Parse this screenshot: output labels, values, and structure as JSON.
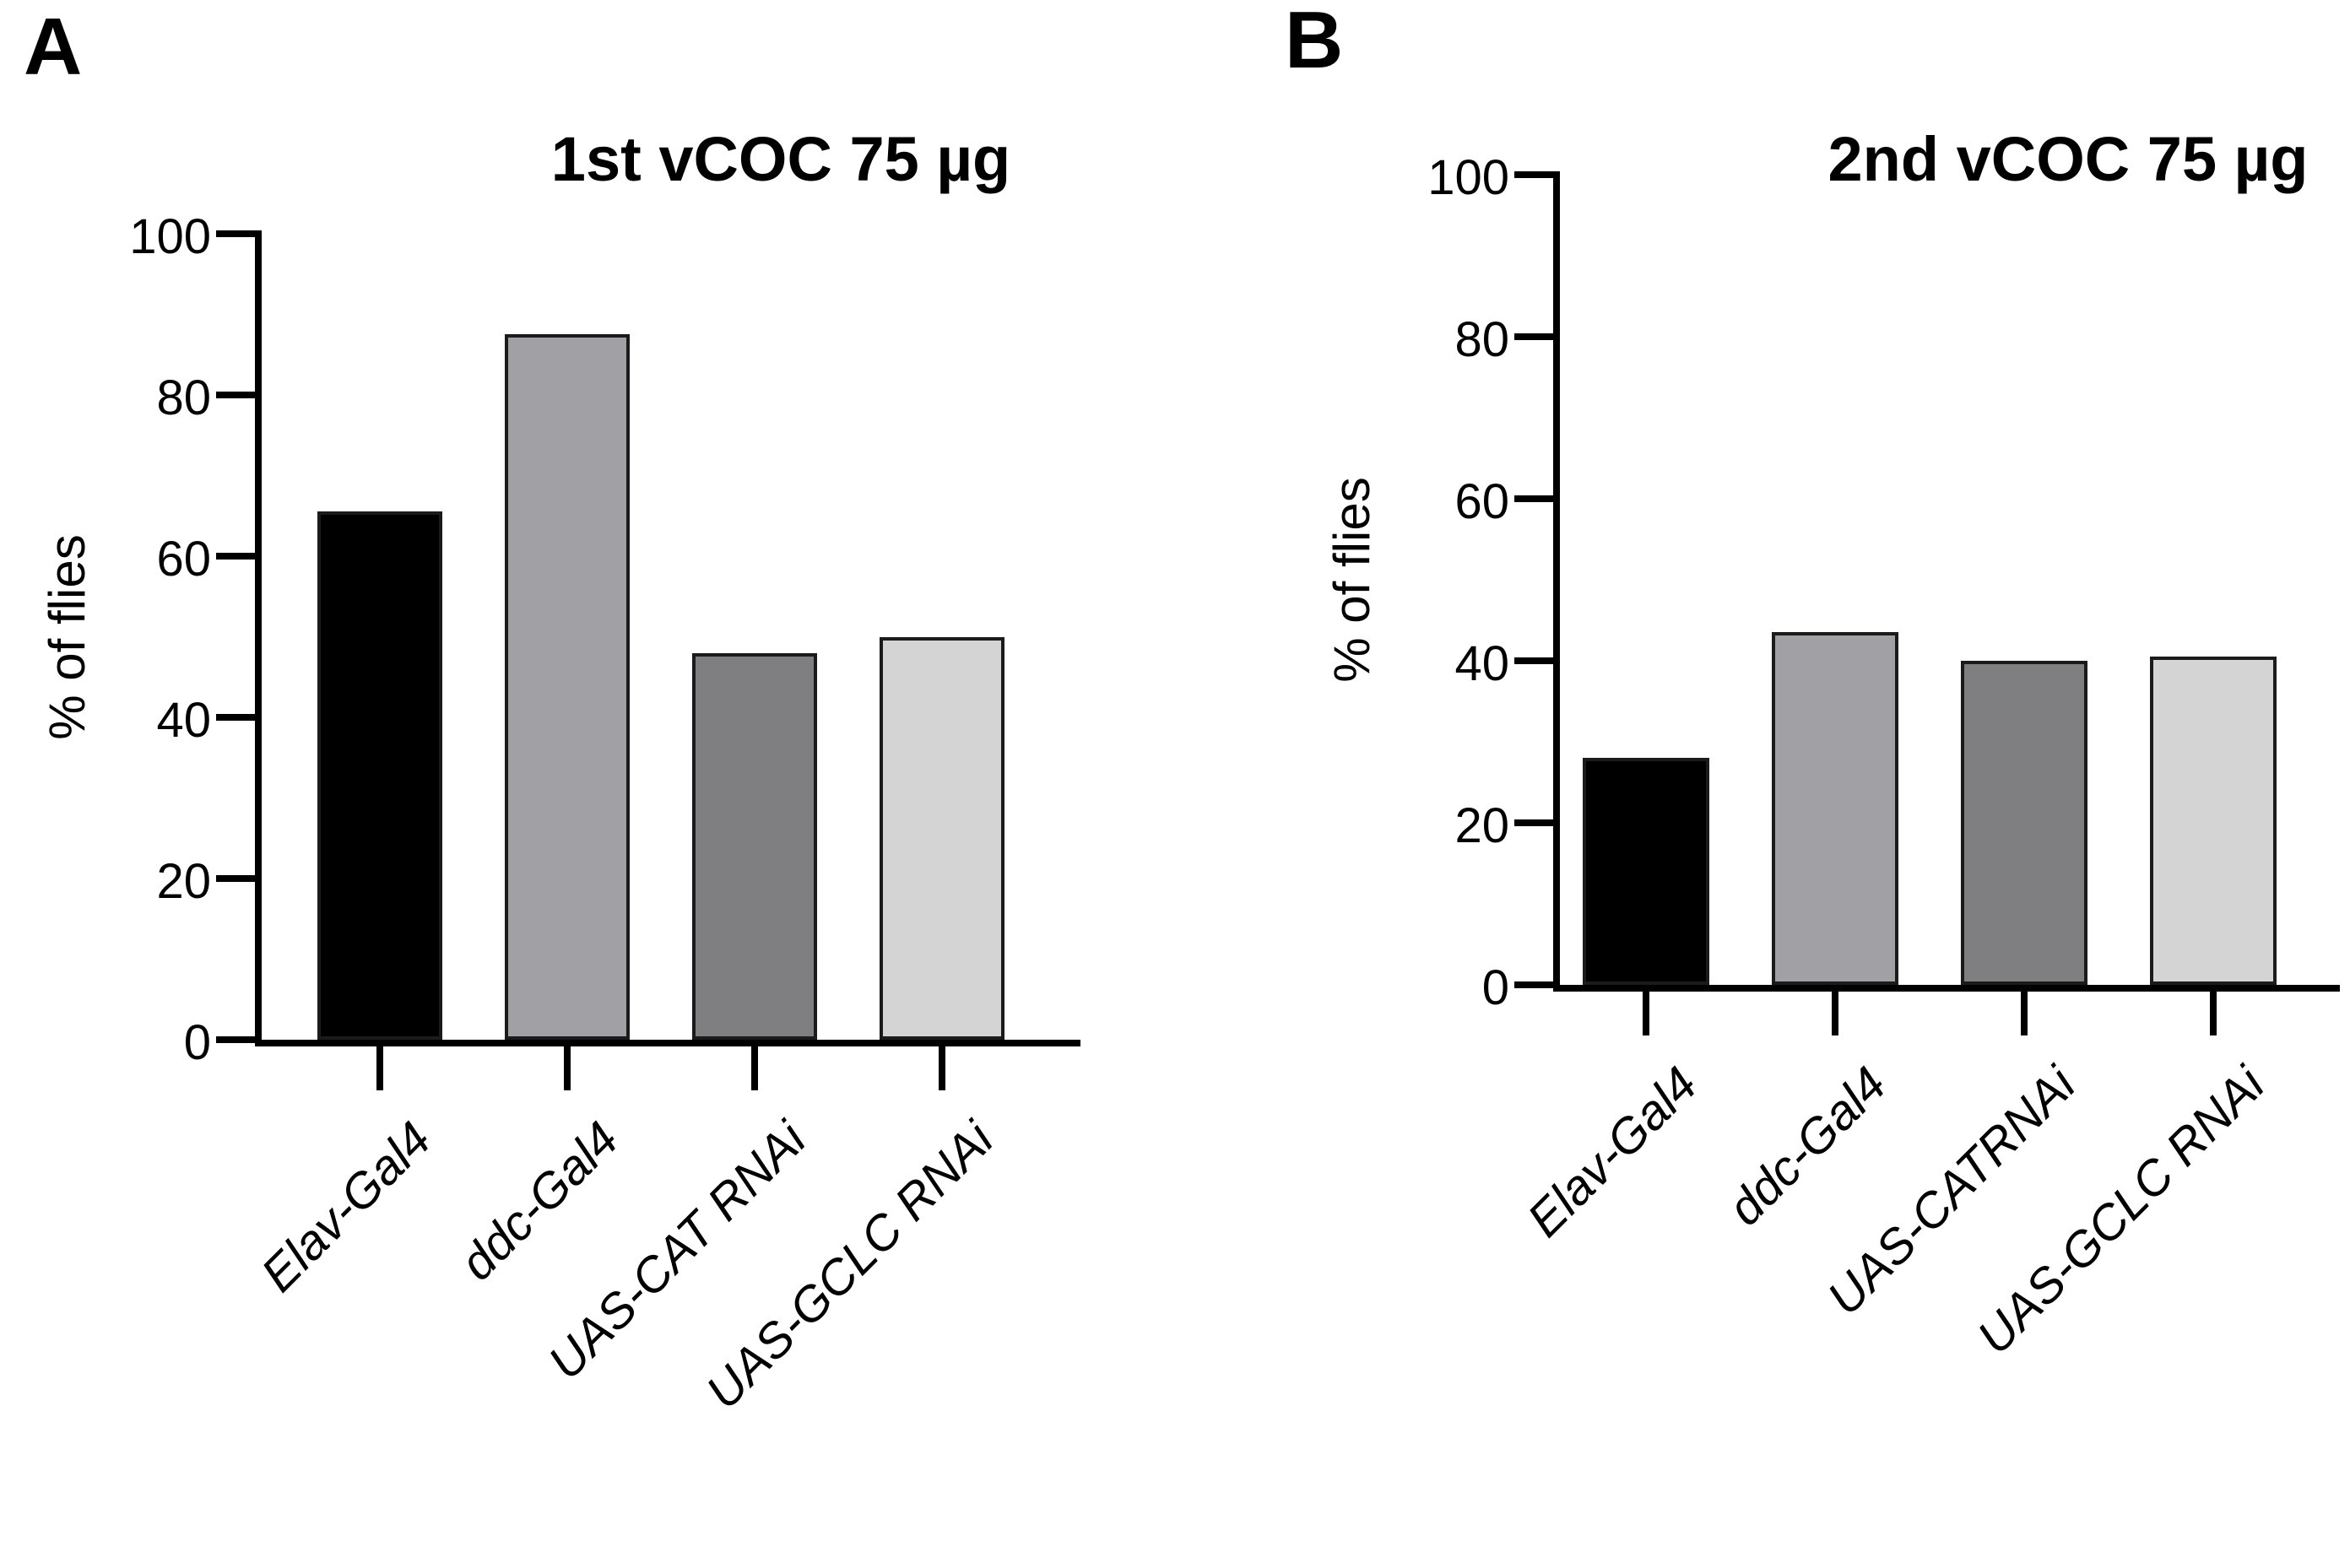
{
  "figure": {
    "background_color": "#ffffff",
    "bar_border_color": "#1b1b1b",
    "axis_color": "#000000"
  },
  "chart_data": [
    {
      "type": "bar",
      "panel_label": "A",
      "title": "1st vCOC 75 µg",
      "xlabel": "",
      "ylabel": "% of flies",
      "ylim": [
        0,
        100
      ],
      "yticks": [
        0,
        20,
        40,
        60,
        80,
        100
      ],
      "categories": [
        "Elav-Gal4",
        "ddc-Gal4",
        "UAS-CAT RNAi",
        "UAS-GCLC RNAi"
      ],
      "values": [
        65.5,
        87.5,
        48,
        50
      ],
      "bar_colors": [
        "#000000",
        "#a1a1a5",
        "#7f7f81",
        "#d4d4d5"
      ],
      "grid": false,
      "legend_position": "none",
      "category_label_style": "italic, rotated 45deg"
    },
    {
      "type": "bar",
      "panel_label": "B",
      "title": "2nd vCOC 75 µg",
      "xlabel": "",
      "ylabel": "% of flies",
      "ylim": [
        0,
        100
      ],
      "yticks": [
        0,
        20,
        40,
        60,
        80,
        100
      ],
      "categories": [
        "Elav-Gal4",
        "ddc-Gal4",
        "UAS-CATRNAi",
        "UAS-GCLC RNAi"
      ],
      "values": [
        28,
        43.5,
        40,
        40.5
      ],
      "bar_colors": [
        "#000000",
        "#a1a1a5",
        "#7f7f81",
        "#d4d4d5"
      ],
      "grid": false,
      "legend_position": "none",
      "category_label_style": "italic, rotated 45deg"
    }
  ]
}
